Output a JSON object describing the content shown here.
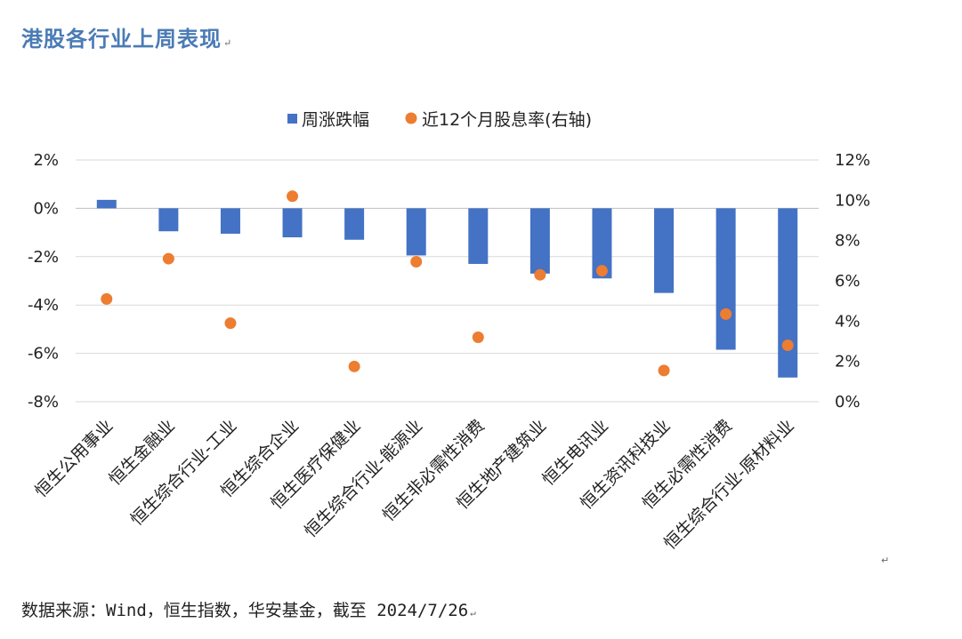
{
  "title": "港股各行业上周表现",
  "source": "数据来源：Wind，恒生指数，华安基金，截至 2024/7/26",
  "colors": {
    "bar": "#4472c4",
    "dot": "#ed7d31",
    "grid": "#d9d9d9",
    "title": "#4a7bb5"
  },
  "chart_data": {
    "type": "bar",
    "categories": [
      "恒生公用事业",
      "恒生金融业",
      "恒生综合行业-工业",
      "恒生综合企业",
      "恒生医疗保健业",
      "恒生综合行业-能源业",
      "恒生非必需性消费",
      "恒生地产建筑业",
      "恒生电讯业",
      "恒生资讯科技业",
      "恒生必需性消费",
      "恒生综合行业-原材料业"
    ],
    "series": [
      {
        "name": "周涨跌幅",
        "type": "bar",
        "axis": "left",
        "values": [
          0.35,
          -0.95,
          -1.05,
          -1.2,
          -1.3,
          -1.95,
          -2.3,
          -2.7,
          -2.9,
          -3.5,
          -5.85,
          -7.0
        ]
      },
      {
        "name": "近12个月股息率(右轴)",
        "type": "scatter",
        "axis": "right",
        "values": [
          5.1,
          7.1,
          3.9,
          10.2,
          1.75,
          6.95,
          3.2,
          6.3,
          6.5,
          1.55,
          4.35,
          2.8
        ]
      }
    ],
    "y_left": {
      "min": -8,
      "max": 2,
      "step": 2,
      "tick_labels": [
        "-8%",
        "-6%",
        "-4%",
        "-2%",
        "0%",
        "2%"
      ]
    },
    "y_right": {
      "min": 0,
      "max": 12,
      "step": 2,
      "tick_labels": [
        "0%",
        "2%",
        "4%",
        "6%",
        "8%",
        "10%",
        "12%"
      ]
    },
    "legend_position": "top-center",
    "grid": true
  }
}
